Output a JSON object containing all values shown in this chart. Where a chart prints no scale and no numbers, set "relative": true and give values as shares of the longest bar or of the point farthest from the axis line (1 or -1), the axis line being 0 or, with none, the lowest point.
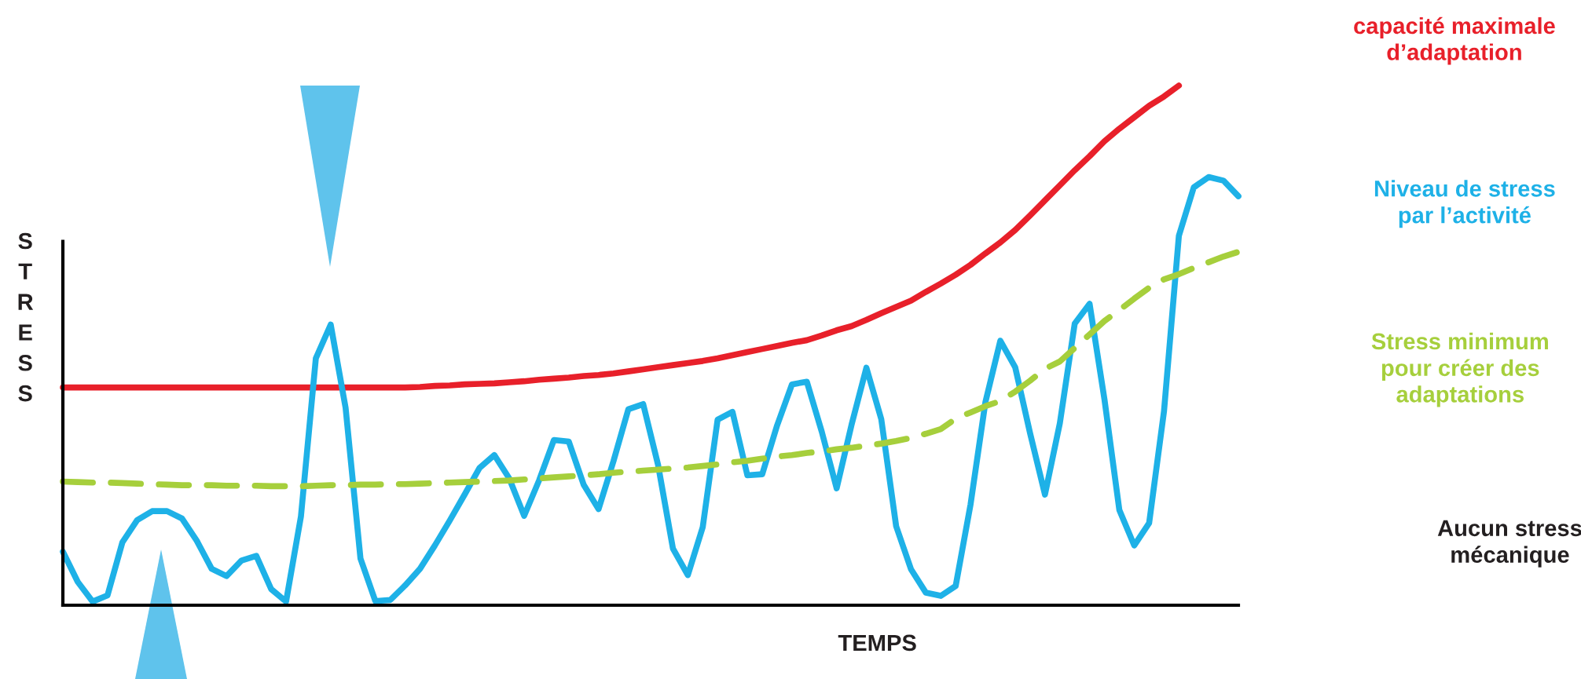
{
  "chart_data": {
    "type": "line",
    "relative": true,
    "xlabel": "TEMPS",
    "ylabel": "STRESS",
    "categories": [
      null,
      null,
      null,
      null,
      null,
      null,
      null,
      null,
      null,
      null,
      null,
      null,
      null,
      null,
      null,
      null,
      null,
      null,
      null,
      null,
      null,
      null,
      null,
      null,
      null,
      null,
      null,
      null,
      null,
      null,
      null,
      null,
      null,
      null,
      null,
      null,
      null,
      null,
      null,
      null,
      null,
      null,
      null,
      null,
      null,
      null,
      null,
      null,
      null,
      null,
      null,
      null,
      null,
      null,
      null,
      null,
      null,
      null,
      null,
      null,
      null,
      null,
      null,
      null,
      null,
      null,
      null,
      null,
      null,
      null,
      null,
      null,
      null,
      null,
      null,
      null,
      null,
      null,
      null,
      null
    ],
    "series": [
      {
        "name": "capacité maximale\nd’adaptation",
        "color": "#e8202a",
        "line_style": "solid",
        "values": [
          0.419,
          0.419,
          0.419,
          0.419,
          0.419,
          0.419,
          0.419,
          0.419,
          0.419,
          0.419,
          0.419,
          0.419,
          0.419,
          0.419,
          0.419,
          0.419,
          0.419,
          0.419,
          0.419,
          0.419,
          0.419,
          0.419,
          0.419,
          0.419,
          0.42,
          0.422,
          0.423,
          0.425,
          0.426,
          0.427,
          0.429,
          0.431,
          0.434,
          0.436,
          0.438,
          0.441,
          0.443,
          0.446,
          0.45,
          0.454,
          0.458,
          0.462,
          0.466,
          0.47,
          0.475,
          0.481,
          0.487,
          0.493,
          0.499,
          0.505,
          0.51,
          0.519,
          0.529,
          0.537,
          0.549,
          0.562,
          0.574,
          0.586,
          0.603,
          0.619,
          0.636,
          0.655,
          0.677,
          0.698,
          0.722,
          0.75,
          0.779,
          0.808,
          0.837,
          0.864,
          0.893,
          0.917,
          0.939,
          0.961,
          0.979,
          1.0,
          null,
          null,
          null,
          null
        ]
      },
      {
        "name": "Niveau de stress\npar l’activité",
        "color": "#1eb1e7",
        "line_style": "solid",
        "values": [
          0.103,
          0.045,
          0.007,
          0.019,
          0.121,
          0.164,
          0.181,
          0.181,
          0.167,
          0.124,
          0.07,
          0.056,
          0.086,
          0.095,
          0.031,
          0.007,
          0.171,
          0.475,
          0.54,
          0.38,
          0.09,
          0.008,
          0.01,
          0.038,
          0.07,
          0.115,
          0.163,
          0.213,
          0.264,
          0.289,
          0.244,
          0.172,
          0.24,
          0.318,
          0.315,
          0.232,
          0.185,
          0.277,
          0.377,
          0.387,
          0.27,
          0.109,
          0.058,
          0.15,
          0.357,
          0.372,
          0.25,
          0.252,
          0.346,
          0.425,
          0.43,
          0.334,
          0.225,
          0.347,
          0.457,
          0.358,
          0.152,
          0.069,
          0.024,
          0.018,
          0.037,
          0.194,
          0.391,
          0.509,
          0.458,
          0.331,
          0.213,
          0.35,
          0.542,
          0.58,
          0.396,
          0.183,
          0.115,
          0.158,
          0.373,
          0.711,
          0.804,
          0.824,
          0.817,
          0.787
        ]
      },
      {
        "name": "Stress minimum\npour créer des\nadaptations",
        "color": "#a6cf3c",
        "line_style": "dashed",
        "values": [
          0.238,
          0.237,
          0.236,
          0.236,
          0.235,
          0.234,
          0.233,
          0.232,
          0.231,
          0.231,
          0.231,
          0.23,
          0.23,
          0.23,
          0.229,
          0.229,
          0.229,
          0.23,
          0.231,
          0.231,
          0.232,
          0.232,
          0.233,
          0.233,
          0.234,
          0.235,
          0.236,
          0.237,
          0.238,
          0.239,
          0.24,
          0.242,
          0.244,
          0.246,
          0.248,
          0.25,
          0.252,
          0.255,
          0.257,
          0.259,
          0.261,
          0.263,
          0.265,
          0.268,
          0.271,
          0.275,
          0.278,
          0.282,
          0.286,
          0.289,
          0.293,
          0.296,
          0.3,
          0.303,
          0.307,
          0.311,
          0.316,
          0.322,
          0.33,
          0.339,
          0.359,
          0.371,
          0.383,
          0.393,
          0.411,
          0.432,
          0.455,
          0.469,
          0.495,
          0.521,
          0.547,
          0.568,
          0.59,
          0.611,
          0.627,
          0.637,
          0.649,
          0.66,
          0.671,
          0.68
        ]
      }
    ],
    "annotations": [
      "Aucun stress\nmécanique"
    ]
  }
}
